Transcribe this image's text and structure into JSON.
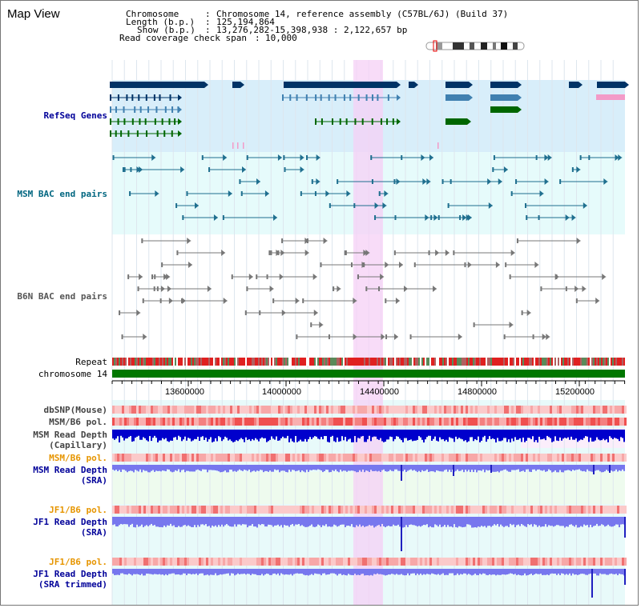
{
  "page": {
    "title": "Map View"
  },
  "info": {
    "chromosome_label": "Chromosome",
    "chromosome_value": "Chromosome 14, reference assembly (C57BL/6J) (Build 37)",
    "length_label": "Length (b.p.)",
    "length_value": "125,194,864",
    "show_label": "Show (b.p.)",
    "show_value": "13,276,282-15,398,938 : 2,122,657 bp",
    "coverage_label": "Read coverage check span",
    "coverage_value": "10,000"
  },
  "tracks": {
    "refseq": "RefSeq Genes",
    "msm_bac": "MSM BAC end pairs",
    "b6n_bac": "B6N BAC end pairs",
    "repeat": "Repeat",
    "chromosome": "chromosome 14",
    "dbsnp": "dbSNP(Mouse)",
    "msm_b6_pol_1": "MSM/B6 pol.",
    "msm_depth_cap_1": "MSM Read Depth",
    "msm_depth_cap_2": "(Capillary)",
    "msm_b6_pol_2": "MSM/B6 pol.",
    "msm_depth_sra_1": "MSM Read Depth",
    "msm_depth_sra_2": "(SRA)",
    "jf1_b6_pol_1": "JF1/B6 pol.",
    "jf1_depth_sra_1": "JF1 Read Depth",
    "jf1_depth_sra_2": "(SRA)",
    "jf1_b6_pol_2": "JF1/B6 pol.",
    "jf1_depth_trim_1": "JF1 Read Depth",
    "jf1_depth_trim_2": "(SRA trimmed)"
  },
  "ruler": {
    "ticks": [
      "13600000",
      "14000000",
      "14400000",
      "14800000",
      "15200000"
    ]
  },
  "colors": {
    "refseq_bg": "#d8eefa",
    "msm_bg": "#e6fbfb",
    "highlight": "#f5d0f5",
    "gene_dark": "#003366",
    "gene_teal": "#4080b0",
    "gene_green": "#006600",
    "chrom_green": "#007700",
    "depth_blue": "#0000cc",
    "depth_sra": "#7777ee",
    "label_blue": "#000099",
    "label_orange": "#e69500"
  }
}
